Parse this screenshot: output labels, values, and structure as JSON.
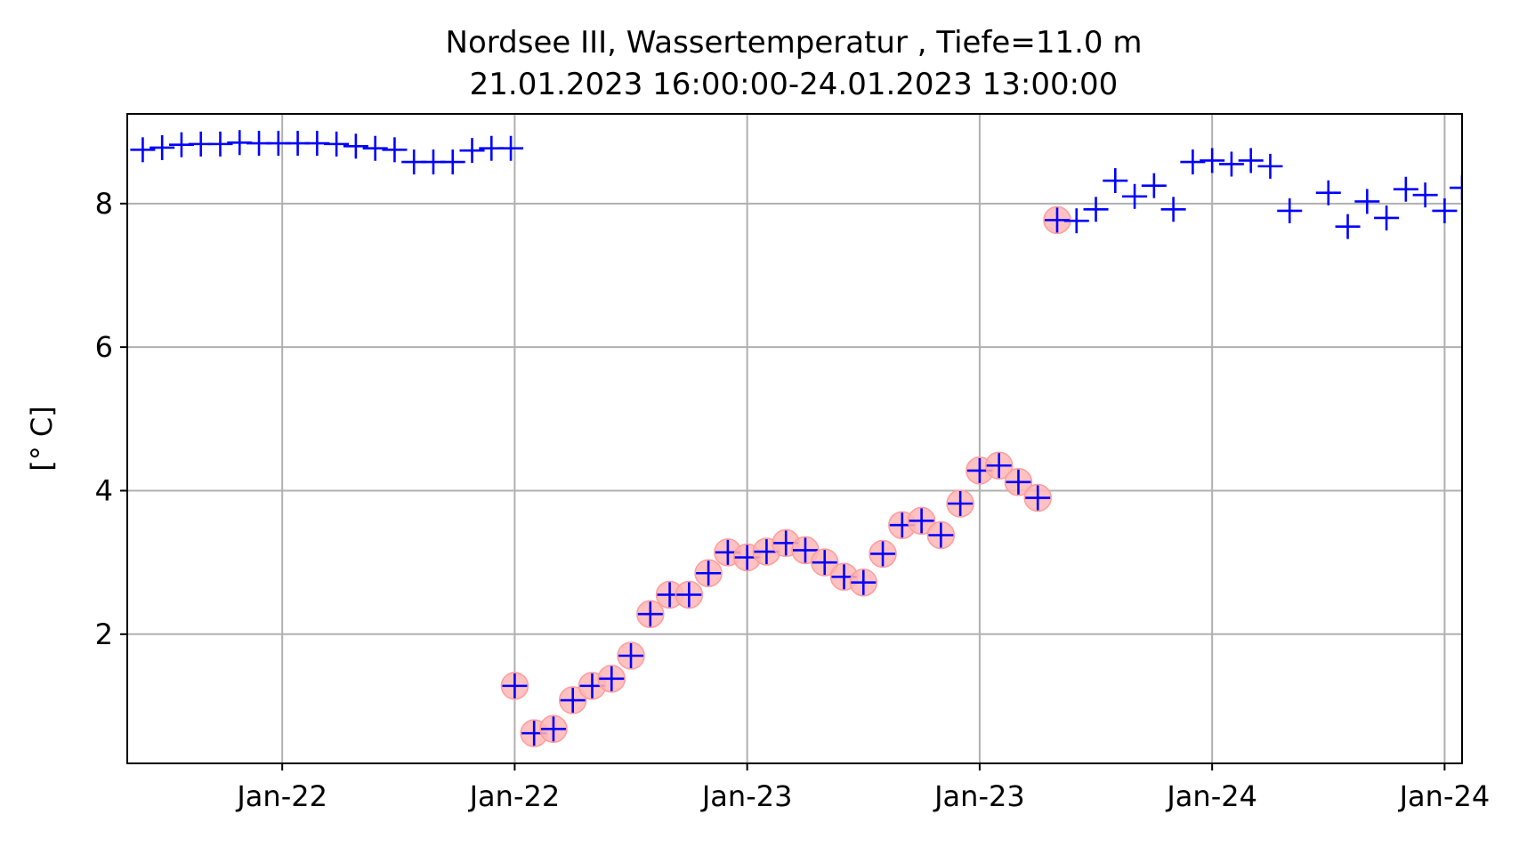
{
  "chart_data": {
    "type": "scatter",
    "title": [
      "Nordsee III, Wassertemperatur , Tiefe=11.0 m",
      "21.01.2023 16:00:00-24.01.2023 13:00:00"
    ],
    "ylabel": "[° C]",
    "xlabel": "",
    "ylim": [
      0.2,
      9.25
    ],
    "yticks": [
      2,
      4,
      6,
      8
    ],
    "xticks": [
      {
        "label": "Jan-22",
        "hour": 8
      },
      {
        "label": "Jan-22",
        "hour": 20
      },
      {
        "label": "Jan-23",
        "hour": 32
      },
      {
        "label": "Jan-23",
        "hour": 44
      },
      {
        "label": "Jan-24",
        "hour": 56
      },
      {
        "label": "Jan-24",
        "hour": 68
      }
    ],
    "xlim_hours": [
      0,
      68.9
    ],
    "grid": true,
    "points": [
      {
        "t": 0.8,
        "y": 8.75,
        "flagged": false
      },
      {
        "t": 1.8,
        "y": 8.78,
        "flagged": false
      },
      {
        "t": 2.8,
        "y": 8.82,
        "flagged": false
      },
      {
        "t": 3.8,
        "y": 8.83,
        "flagged": false
      },
      {
        "t": 4.8,
        "y": 8.83,
        "flagged": false
      },
      {
        "t": 5.8,
        "y": 8.85,
        "flagged": false
      },
      {
        "t": 6.8,
        "y": 8.84,
        "flagged": false
      },
      {
        "t": 7.8,
        "y": 8.84,
        "flagged": false
      },
      {
        "t": 8.8,
        "y": 8.84,
        "flagged": false
      },
      {
        "t": 9.8,
        "y": 8.84,
        "flagged": false
      },
      {
        "t": 10.8,
        "y": 8.83,
        "flagged": false
      },
      {
        "t": 11.8,
        "y": 8.8,
        "flagged": false
      },
      {
        "t": 12.8,
        "y": 8.77,
        "flagged": false
      },
      {
        "t": 13.8,
        "y": 8.75,
        "flagged": false
      },
      {
        "t": 14.8,
        "y": 8.58,
        "flagged": false
      },
      {
        "t": 15.8,
        "y": 8.58,
        "flagged": false
      },
      {
        "t": 16.8,
        "y": 8.58,
        "flagged": false
      },
      {
        "t": 17.8,
        "y": 8.74,
        "flagged": false
      },
      {
        "t": 18.8,
        "y": 8.77,
        "flagged": false
      },
      {
        "t": 19.8,
        "y": 8.77,
        "flagged": false
      },
      {
        "t": 20.0,
        "y": 1.28,
        "flagged": true
      },
      {
        "t": 21.0,
        "y": 0.62,
        "flagged": true
      },
      {
        "t": 22.0,
        "y": 0.68,
        "flagged": true
      },
      {
        "t": 23.0,
        "y": 1.08,
        "flagged": true
      },
      {
        "t": 24.0,
        "y": 1.28,
        "flagged": true
      },
      {
        "t": 25.0,
        "y": 1.38,
        "flagged": true
      },
      {
        "t": 26.0,
        "y": 1.7,
        "flagged": true
      },
      {
        "t": 27.0,
        "y": 2.28,
        "flagged": true
      },
      {
        "t": 28.0,
        "y": 2.55,
        "flagged": true
      },
      {
        "t": 29.0,
        "y": 2.55,
        "flagged": true
      },
      {
        "t": 30.0,
        "y": 2.85,
        "flagged": true
      },
      {
        "t": 31.0,
        "y": 3.14,
        "flagged": true
      },
      {
        "t": 32.0,
        "y": 3.07,
        "flagged": true
      },
      {
        "t": 33.0,
        "y": 3.15,
        "flagged": true
      },
      {
        "t": 34.0,
        "y": 3.27,
        "flagged": true
      },
      {
        "t": 35.0,
        "y": 3.17,
        "flagged": true
      },
      {
        "t": 36.0,
        "y": 3.0,
        "flagged": true
      },
      {
        "t": 37.0,
        "y": 2.8,
        "flagged": true
      },
      {
        "t": 38.0,
        "y": 2.72,
        "flagged": true
      },
      {
        "t": 39.0,
        "y": 3.12,
        "flagged": true
      },
      {
        "t": 40.0,
        "y": 3.52,
        "flagged": true
      },
      {
        "t": 41.0,
        "y": 3.58,
        "flagged": true
      },
      {
        "t": 42.0,
        "y": 3.38,
        "flagged": true
      },
      {
        "t": 43.0,
        "y": 3.82,
        "flagged": true
      },
      {
        "t": 44.0,
        "y": 4.28,
        "flagged": true
      },
      {
        "t": 45.0,
        "y": 4.35,
        "flagged": true
      },
      {
        "t": 46.0,
        "y": 4.12,
        "flagged": true
      },
      {
        "t": 47.0,
        "y": 3.9,
        "flagged": true
      },
      {
        "t": 48.0,
        "y": 7.77,
        "flagged": true
      },
      {
        "t": 49.0,
        "y": 7.76,
        "flagged": false
      },
      {
        "t": 50.0,
        "y": 7.92,
        "flagged": false
      },
      {
        "t": 51.0,
        "y": 8.32,
        "flagged": false
      },
      {
        "t": 52.0,
        "y": 8.1,
        "flagged": false
      },
      {
        "t": 53.0,
        "y": 8.25,
        "flagged": false
      },
      {
        "t": 54.0,
        "y": 7.92,
        "flagged": false
      },
      {
        "t": 55.0,
        "y": 8.58,
        "flagged": false
      },
      {
        "t": 56.0,
        "y": 8.6,
        "flagged": false
      },
      {
        "t": 57.0,
        "y": 8.55,
        "flagged": false
      },
      {
        "t": 58.0,
        "y": 8.6,
        "flagged": false
      },
      {
        "t": 59.0,
        "y": 8.52,
        "flagged": false
      },
      {
        "t": 60.0,
        "y": 7.9,
        "flagged": false
      },
      {
        "t": 62.0,
        "y": 8.15,
        "flagged": false
      },
      {
        "t": 63.0,
        "y": 7.68,
        "flagged": false
      },
      {
        "t": 64.0,
        "y": 8.03,
        "flagged": false
      },
      {
        "t": 65.0,
        "y": 7.8,
        "flagged": false
      },
      {
        "t": 66.0,
        "y": 8.2,
        "flagged": false
      },
      {
        "t": 67.0,
        "y": 8.12,
        "flagged": false
      },
      {
        "t": 68.0,
        "y": 7.9,
        "flagged": false
      },
      {
        "t": 68.9,
        "y": 8.22,
        "flagged": false
      }
    ],
    "colors": {
      "marker": "#0000ff",
      "flag": "#ffb6b6",
      "grid": "#b0b0b0"
    }
  }
}
